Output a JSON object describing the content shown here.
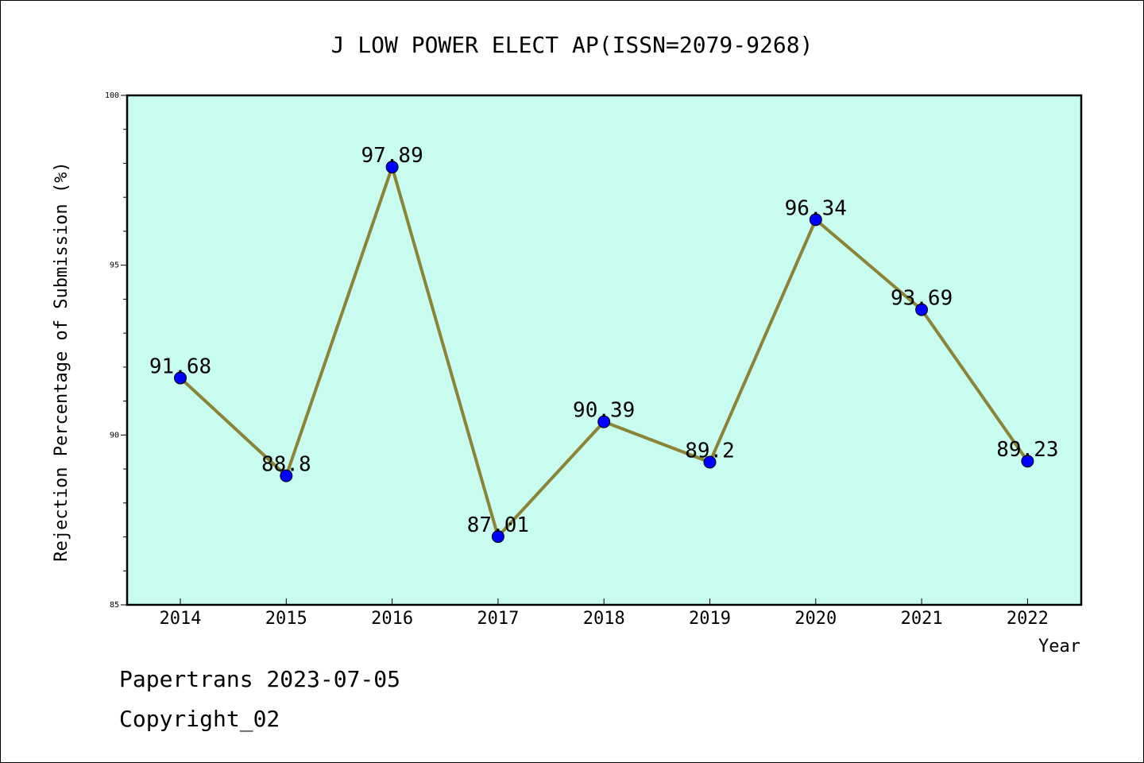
{
  "chart_data": {
    "type": "line",
    "title": "J LOW POWER ELECT AP(ISSN=2079-9268)",
    "xlabel": "Year",
    "ylabel": "Rejection Percentage of Submission (%)",
    "categories": [
      "2014",
      "2015",
      "2016",
      "2017",
      "2018",
      "2019",
      "2020",
      "2021",
      "2022"
    ],
    "series": [
      {
        "values": [
          91.68,
          88.8,
          97.89,
          87.01,
          90.39,
          89.2,
          96.34,
          93.69,
          89.23
        ],
        "labels": [
          "91.68",
          "88.8",
          "97.89",
          "87.01",
          "90.39",
          "89.2",
          "96.34",
          "93.69",
          "89.23"
        ]
      }
    ],
    "ylim": [
      85,
      100
    ],
    "yticks": [
      85,
      90,
      95,
      100
    ],
    "ytick_labels": [
      "85",
      "90",
      "95",
      "100"
    ],
    "grid": false,
    "colors": {
      "plot_background": "#c8fcee",
      "line": "#8b8437",
      "marker": "#0000ff"
    }
  },
  "footer": {
    "line1": "Papertrans 2023-07-05",
    "line2": "Copyright_02"
  }
}
